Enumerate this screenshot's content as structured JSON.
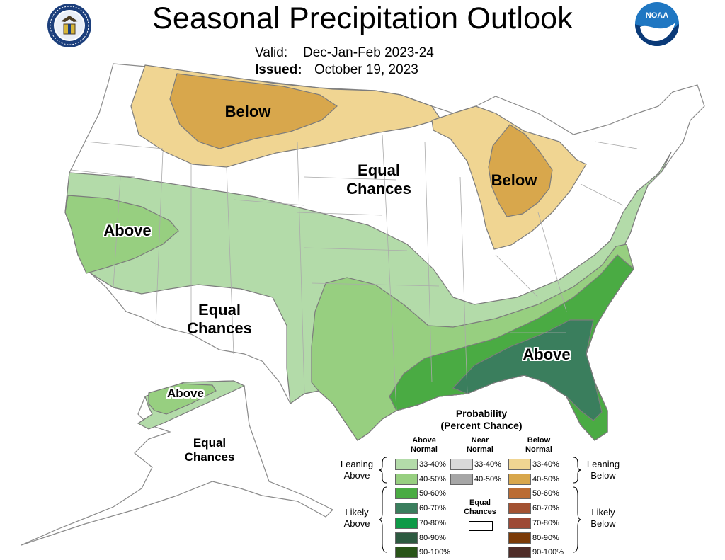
{
  "header": {
    "title": "Seasonal Precipitation Outlook",
    "valid_label": "Valid:",
    "valid_value": "Dec-Jan-Feb 2023-24",
    "issued_label": "Issued:",
    "issued_value": "October 19, 2023"
  },
  "logos": {
    "left": "commerce-seal-icon",
    "right": "noaa-logo-icon"
  },
  "map_labels": {
    "north_below": "Below",
    "great_lakes_below": "Below",
    "central_ec_line1": "Equal",
    "central_ec_line2": "Chances",
    "west_above": "Above",
    "southwest_ec_line1": "Equal",
    "southwest_ec_line2": "Chances",
    "southeast_above": "Above",
    "alaska_above": "Above",
    "alaska_ec_line1": "Equal",
    "alaska_ec_line2": "Chances"
  },
  "colors": {
    "above_33_40": "#b3dba9",
    "above_40_50": "#97cf80",
    "above_50_60": "#4aab43",
    "above_60_70": "#3a7e5d",
    "above_70_80": "#0e9a47",
    "above_80_90": "#2d5a40",
    "above_90_100": "#295418",
    "near_33_40": "#d9d9d9",
    "near_40_50": "#a6a6a6",
    "below_33_40": "#f0d592",
    "below_40_50": "#d8a74c",
    "below_50_60": "#bb6c33",
    "below_60_70": "#a35232",
    "below_70_80": "#9d4a36",
    "below_80_90": "#7b3a07",
    "below_90_100": "#4e2c28"
  },
  "legend": {
    "title_line1": "Probability",
    "title_line2": "(Percent Chance)",
    "above_header_1": "Above",
    "above_header_2": "Normal",
    "near_header_1": "Near",
    "near_header_2": "Normal",
    "below_header_1": "Below",
    "below_header_2": "Normal",
    "leaning_above_1": "Leaning",
    "leaning_above_2": "Above",
    "likely_above_1": "Likely",
    "likely_above_2": "Above",
    "leaning_below_1": "Leaning",
    "leaning_below_2": "Below",
    "likely_below_1": "Likely",
    "likely_below_2": "Below",
    "equal_1": "Equal",
    "equal_2": "Chances",
    "above_items": [
      "33-40%",
      "40-50%",
      "50-60%",
      "60-70%",
      "70-80%",
      "80-90%",
      "90-100%"
    ],
    "near_items": [
      "33-40%",
      "40-50%"
    ],
    "below_items": [
      "33-40%",
      "40-50%",
      "50-60%",
      "60-70%",
      "70-80%",
      "80-90%",
      "90-100%"
    ]
  }
}
